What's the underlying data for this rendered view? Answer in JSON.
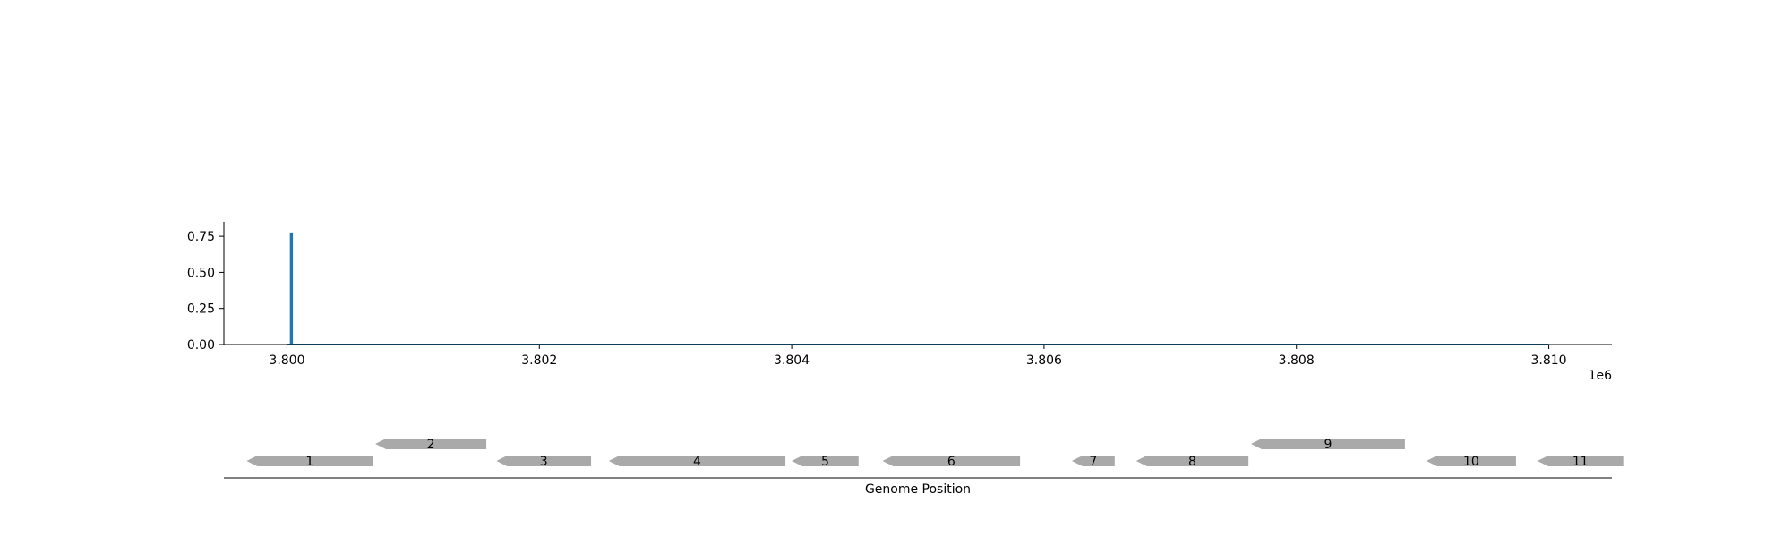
{
  "chart_data": [
    {
      "type": "line",
      "title": "",
      "xlabel": "",
      "ylabel": "",
      "x_offset_label": "1e6",
      "xlim": [
        3.7995,
        3.8105
      ],
      "ylim": [
        0,
        0.85
      ],
      "x_ticks": [
        3.8,
        3.802,
        3.804,
        3.806,
        3.808,
        3.81
      ],
      "x_tick_labels": [
        "3.800",
        "3.802",
        "3.804",
        "3.806",
        "3.808",
        "3.810"
      ],
      "y_ticks": [
        0.0,
        0.25,
        0.5,
        0.75
      ],
      "y_tick_labels": [
        "0.00",
        "0.25",
        "0.50",
        "0.75"
      ],
      "grid": false,
      "color": "#1f77b4",
      "series": [
        {
          "x": [
            3.8,
            3.80003,
            3.80003,
            3.80004,
            3.80004,
            3.81
          ],
          "y": [
            0.0,
            0.0,
            0.77,
            0.77,
            0.0,
            0.0
          ]
        }
      ]
    },
    {
      "type": "gene_map",
      "xlabel": "Genome Position",
      "xlim": [
        3.7995,
        3.8105
      ],
      "color": "#a9a9a9",
      "genes": [
        {
          "label": "1",
          "start": 3.79968,
          "end": 3.80068,
          "strand": "-",
          "row": 0
        },
        {
          "label": "2",
          "start": 3.8007,
          "end": 3.80158,
          "strand": "-",
          "row": 1
        },
        {
          "label": "3",
          "start": 3.80166,
          "end": 3.80241,
          "strand": "-",
          "row": 0
        },
        {
          "label": "4",
          "start": 3.80255,
          "end": 3.80395,
          "strand": "-",
          "row": 0
        },
        {
          "label": "5",
          "start": 3.804,
          "end": 3.80453,
          "strand": "-",
          "row": 0
        },
        {
          "label": "6",
          "start": 3.80472,
          "end": 3.80581,
          "strand": "-",
          "row": 0
        },
        {
          "label": "7",
          "start": 3.80622,
          "end": 3.80656,
          "strand": "-",
          "row": 0
        },
        {
          "label": "8",
          "start": 3.80673,
          "end": 3.80762,
          "strand": "-",
          "row": 0
        },
        {
          "label": "9",
          "start": 3.80764,
          "end": 3.80886,
          "strand": "-",
          "row": 1
        },
        {
          "label": "10",
          "start": 3.80903,
          "end": 3.80974,
          "strand": "-",
          "row": 0
        },
        {
          "label": "11",
          "start": 3.80991,
          "end": 3.81059,
          "strand": "-",
          "row": 0
        }
      ]
    }
  ]
}
